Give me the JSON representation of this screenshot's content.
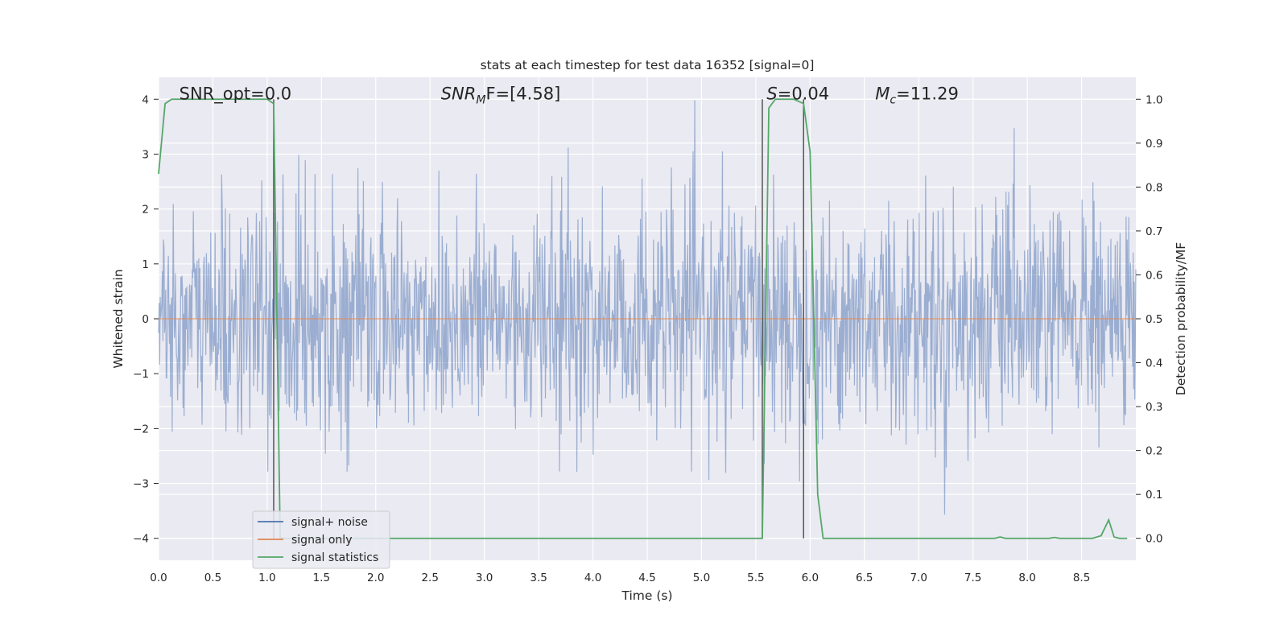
{
  "chart_data": {
    "type": "line",
    "title": "stats at each timestep for test data 16352 [signal=0]",
    "xlabel": "Time (s)",
    "ylabel_left": "Whitened strain",
    "ylabel_right": "Detection probability/MF",
    "xlim": [
      0.0,
      9.0
    ],
    "ylim_left": [
      -4.4,
      4.4
    ],
    "ylim_right": [
      -0.05,
      1.05
    ],
    "x_ticks": [
      0.0,
      0.5,
      1.0,
      1.5,
      2.0,
      2.5,
      3.0,
      3.5,
      4.0,
      4.5,
      5.0,
      5.5,
      6.0,
      6.5,
      7.0,
      7.5,
      8.0,
      8.5
    ],
    "x_tick_labels": [
      "0.0",
      "0.5",
      "1.0",
      "1.5",
      "2.0",
      "2.5",
      "3.0",
      "3.5",
      "4.0",
      "4.5",
      "5.0",
      "5.5",
      "6.0",
      "6.5",
      "7.0",
      "7.5",
      "8.0",
      "8.5"
    ],
    "left_ticks": [
      -4,
      -3,
      -2,
      -1,
      0,
      1,
      2,
      3,
      4
    ],
    "left_tick_labels": [
      "−4",
      "−3",
      "−2",
      "−1",
      "0",
      "1",
      "2",
      "3",
      "4"
    ],
    "right_ticks": [
      0.0,
      0.1,
      0.2,
      0.3,
      0.4,
      0.5,
      0.6,
      0.7,
      0.8,
      0.9,
      1.0
    ],
    "right_tick_labels": [
      "0.0",
      "0.1",
      "0.2",
      "0.3",
      "0.4",
      "0.5",
      "0.6",
      "0.7",
      "0.8",
      "0.9",
      "1.0"
    ],
    "grid": true,
    "legend_position": "lower-left",
    "legend": [
      {
        "label": "signal+ noise",
        "color": "#4c72b0"
      },
      {
        "label": "signal only",
        "color": "#dd8452"
      },
      {
        "label": "signal statistics",
        "color": "#55a868"
      }
    ],
    "annotations": [
      {
        "text": "SNR_opt=0.0",
        "x": 0.19,
        "y": 4.1,
        "italic": false
      },
      {
        "pre": "SNR",
        "sub": "M",
        "post": "F=[4.58]",
        "x": 2.6,
        "y": 4.1
      },
      {
        "pre": "S",
        "post": "=0.04",
        "x": 5.6,
        "y": 4.1
      },
      {
        "pre": "M",
        "sub": "c",
        "post": "=11.29",
        "x": 6.6,
        "y": 4.1
      }
    ],
    "vertical_lines": [
      1.06,
      5.56,
      5.94
    ],
    "vertical_line_color": "#555555",
    "noise_series": {
      "name": "signal+ noise",
      "color": "#4c72b0",
      "n_points": 1800,
      "peak_max": 3.98,
      "trough_min": -4.0
    },
    "signal_only_series": {
      "name": "signal only",
      "color": "#dd8452",
      "value": 0.0
    },
    "statistics_series": {
      "name": "signal statistics",
      "color": "#55a868",
      "x": [
        0.0,
        0.06,
        0.12,
        0.2,
        0.3,
        0.5,
        0.7,
        0.9,
        1.0,
        1.06,
        1.12,
        1.18,
        1.3,
        2.0,
        3.0,
        4.0,
        5.0,
        5.5,
        5.56,
        5.62,
        5.68,
        5.75,
        5.85,
        5.94,
        6.0,
        6.07,
        6.12,
        6.2,
        6.5,
        7.0,
        7.5,
        7.7,
        7.75,
        7.8,
        8.0,
        8.2,
        8.25,
        8.3,
        8.6,
        8.68,
        8.75,
        8.8,
        8.85,
        8.92
      ],
      "y": [
        0.83,
        0.99,
        1.0,
        1.0,
        1.0,
        1.0,
        1.0,
        1.0,
        1.0,
        0.99,
        0.0,
        0.0,
        0.0,
        0.0,
        0.0,
        0.0,
        0.0,
        0.0,
        0.0,
        0.98,
        1.0,
        1.0,
        1.0,
        0.99,
        0.88,
        0.1,
        0.0,
        0.0,
        0.0,
        0.0,
        0.0,
        0.0,
        0.003,
        0.0,
        0.0,
        0.0,
        0.002,
        0.0,
        0.0,
        0.006,
        0.042,
        0.003,
        0.0,
        0.0
      ]
    }
  }
}
